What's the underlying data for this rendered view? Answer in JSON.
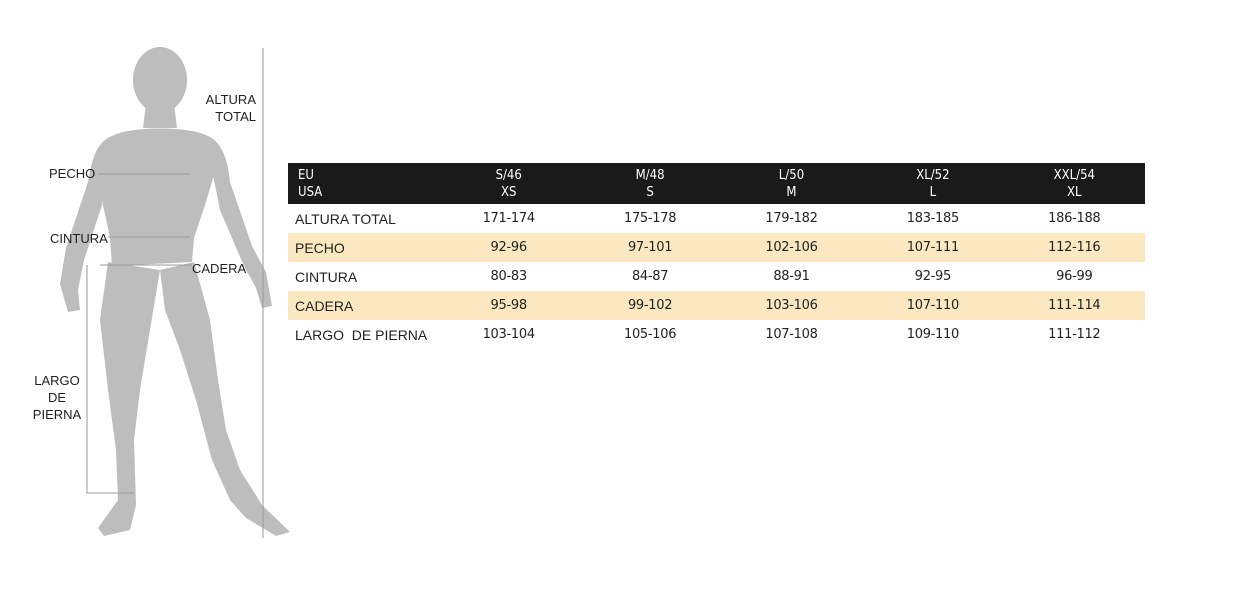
{
  "figure": {
    "labels": {
      "altura_total": [
        "ALTURA",
        "TOTAL"
      ],
      "pecho": "PECHO",
      "cintura": "CINTURA",
      "cadera": "CADERA",
      "largo_de_pierna": [
        "LARGO",
        "DE",
        "PIERNA"
      ]
    },
    "silhouette_color": "#bdbdbd",
    "line_color": "#9a9a9a"
  },
  "size_table": {
    "header_row1_label": "EU",
    "header_row2_label": "USA",
    "sizes": [
      {
        "eu": "S/46",
        "usa": "XS"
      },
      {
        "eu": "M/48",
        "usa": "S"
      },
      {
        "eu": "L/50",
        "usa": "M"
      },
      {
        "eu": "XL/52",
        "usa": "L"
      },
      {
        "eu": "XXL/54",
        "usa": "XL"
      }
    ],
    "rows": [
      {
        "label": "ALTURA TOTAL",
        "values": [
          "171-174",
          "175-178",
          "179-182",
          "183-185",
          "186-188"
        ]
      },
      {
        "label": "PECHO",
        "values": [
          "92-96",
          "97-101",
          "102-106",
          "107-111",
          "112-116"
        ]
      },
      {
        "label": "CINTURA",
        "values": [
          "80-83",
          "84-87",
          "88-91",
          "92-95",
          "96-99"
        ]
      },
      {
        "label": "CADERA",
        "values": [
          "95-98",
          "99-102",
          "103-106",
          "107-110",
          "111-114"
        ]
      },
      {
        "label": "LARGO  DE PIERNA",
        "values": [
          "103-104",
          "105-106",
          "107-108",
          "109-110",
          "111-112"
        ]
      }
    ],
    "header_bg": "#1a1a1a",
    "alt_row_bg": "#fbe8c0"
  }
}
